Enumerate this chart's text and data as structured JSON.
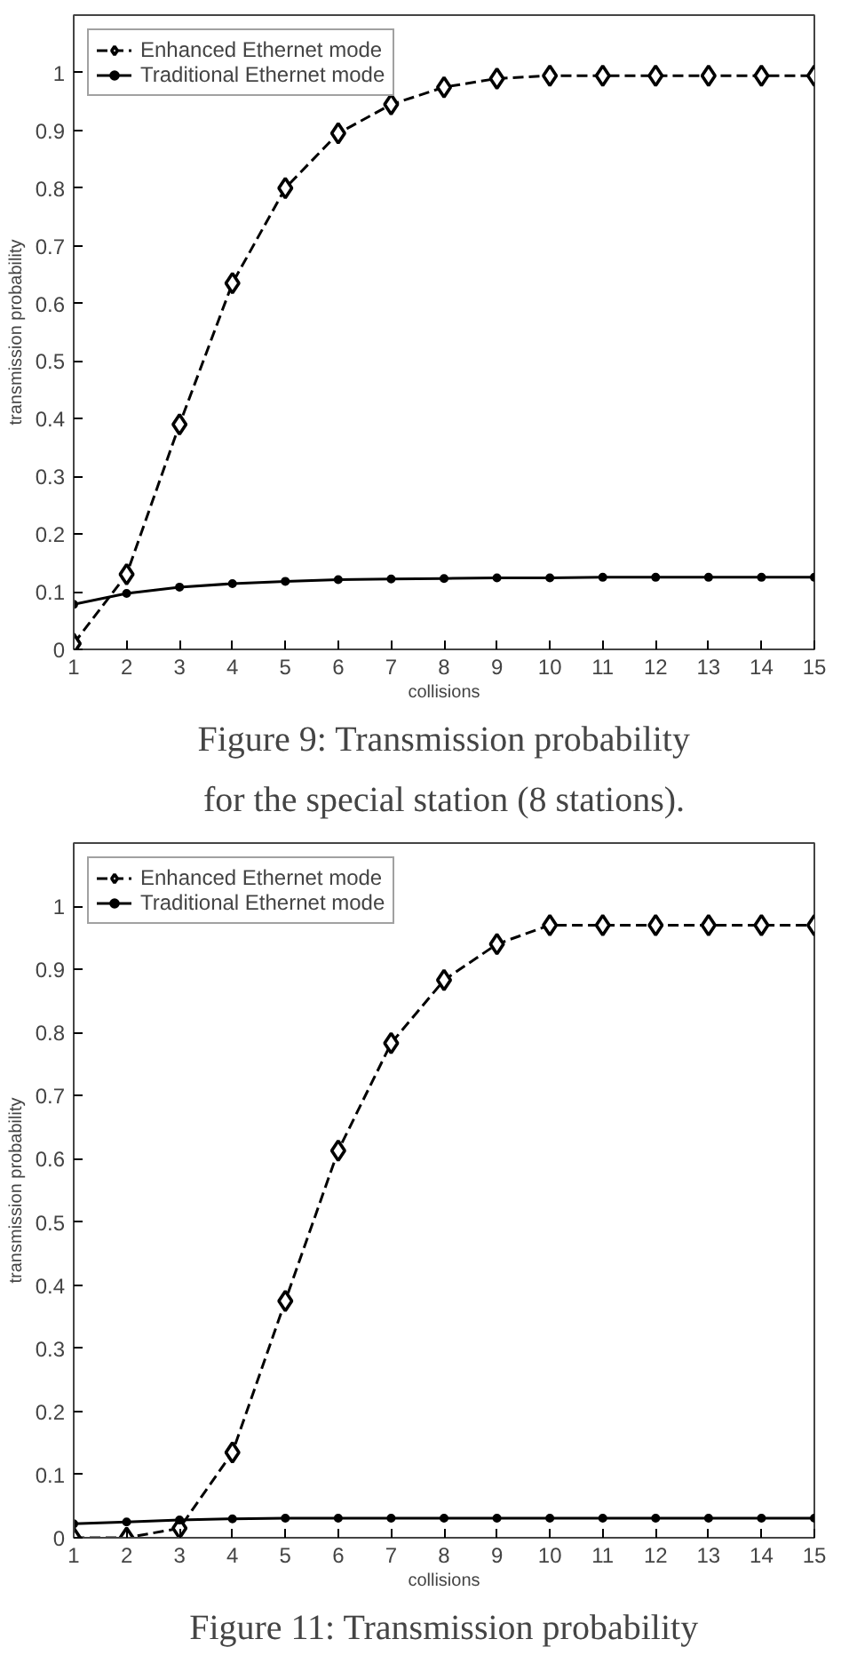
{
  "chart_data": [
    {
      "type": "line",
      "title": "Figure 9: Transmission probability\nfor the special station (8 stations).",
      "xlabel": "collisions",
      "ylabel": "transmission probability",
      "x": [
        1,
        2,
        3,
        4,
        5,
        6,
        7,
        8,
        9,
        10,
        11,
        12,
        13,
        14,
        15
      ],
      "series": [
        {
          "name": "Enhanced Ethernet mode",
          "color": "#000000",
          "marker": "diamond",
          "line_style": "dashed",
          "values": [
            0.01,
            0.13,
            0.39,
            0.635,
            0.8,
            0.895,
            0.945,
            0.975,
            0.99,
            0.995,
            0.995,
            0.995,
            0.995,
            0.995,
            0.995
          ]
        },
        {
          "name": "Traditional Ethernet mode",
          "color": "#000000",
          "marker": "circle",
          "line_style": "solid",
          "values": [
            0.078,
            0.097,
            0.108,
            0.114,
            0.118,
            0.121,
            0.122,
            0.123,
            0.124,
            0.124,
            0.125,
            0.125,
            0.125,
            0.125,
            0.125
          ]
        }
      ],
      "xlim": [
        1,
        15
      ],
      "ylim": [
        0,
        1.1
      ],
      "xticks": [
        1,
        2,
        3,
        4,
        5,
        6,
        7,
        8,
        9,
        10,
        11,
        12,
        13,
        14,
        15
      ],
      "yticks": [
        0,
        0.1,
        0.2,
        0.3,
        0.4,
        0.5,
        0.6,
        0.7,
        0.8,
        0.9,
        1
      ],
      "legend": "top left"
    },
    {
      "type": "line",
      "title": "Figure 11: Transmission probability",
      "xlabel": "collisions",
      "ylabel": "transmission probability",
      "x": [
        1,
        2,
        3,
        4,
        5,
        6,
        7,
        8,
        9,
        10,
        11,
        12,
        13,
        14,
        15
      ],
      "series": [
        {
          "name": "Enhanced Ethernet mode",
          "color": "#000000",
          "marker": "diamond",
          "line_style": "dashed",
          "values": [
            0.0,
            0.0,
            0.015,
            0.135,
            0.375,
            0.613,
            0.783,
            0.883,
            0.94,
            0.97,
            0.97,
            0.97,
            0.97,
            0.97,
            0.97
          ]
        },
        {
          "name": "Traditional Ethernet mode",
          "color": "#000000",
          "marker": "circle",
          "line_style": "solid",
          "values": [
            0.022,
            0.025,
            0.028,
            0.03,
            0.031,
            0.031,
            0.031,
            0.031,
            0.031,
            0.031,
            0.031,
            0.031,
            0.031,
            0.031,
            0.031
          ]
        }
      ],
      "xlim": [
        1,
        15
      ],
      "ylim": [
        0,
        1.1
      ],
      "xticks": [
        1,
        2,
        3,
        4,
        5,
        6,
        7,
        8,
        9,
        10,
        11,
        12,
        13,
        14,
        15
      ],
      "yticks": [
        0,
        0.1,
        0.2,
        0.3,
        0.4,
        0.5,
        0.6,
        0.7,
        0.8,
        0.9,
        1
      ],
      "legend": "top left"
    }
  ]
}
